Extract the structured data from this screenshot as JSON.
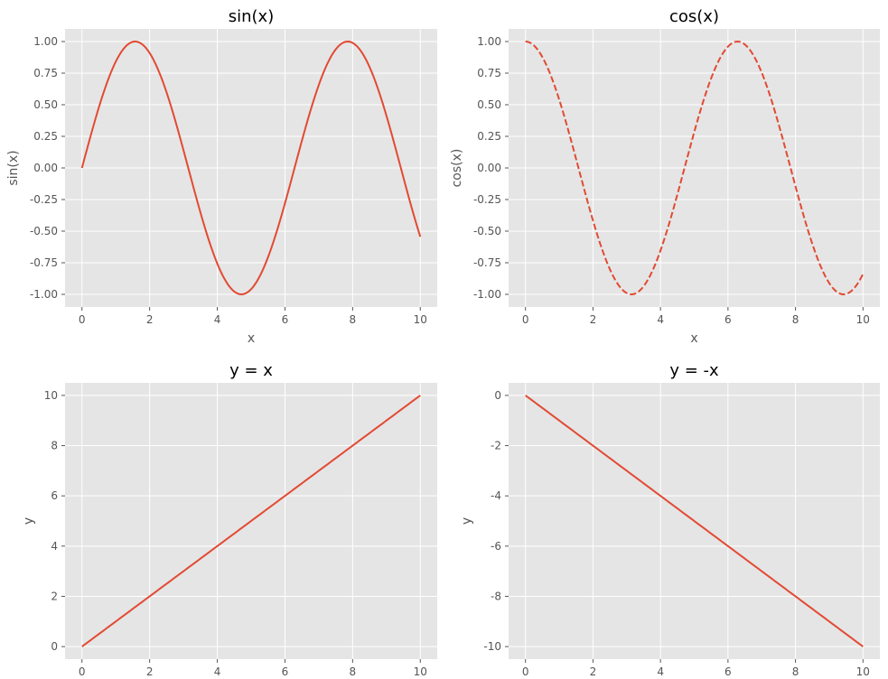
{
  "colors": {
    "line": "#E24A33",
    "panel_bg": "#E5E5E5",
    "grid": "#FFFFFF",
    "tick_mark": "#555555"
  },
  "chart_data": [
    {
      "type": "line",
      "title": "sin(x)",
      "xlabel": "x",
      "ylabel": "sin(x)",
      "function": "sin",
      "linestyle": "solid",
      "xlim": [
        -0.5,
        10.5
      ],
      "ylim": [
        -1.1,
        1.1
      ],
      "x_ticks": [
        0,
        2,
        4,
        6,
        8,
        10
      ],
      "x_tick_labels": [
        "0",
        "2",
        "4",
        "6",
        "8",
        "10"
      ],
      "y_ticks": [
        -1,
        -0.75,
        -0.5,
        -0.25,
        0,
        0.25,
        0.5,
        0.75,
        1
      ],
      "y_tick_labels": [
        "-1.00",
        "-0.75",
        "-0.50",
        "-0.25",
        "0.00",
        "0.25",
        "0.50",
        "0.75",
        "1.00"
      ],
      "grid": true
    },
    {
      "type": "line",
      "title": "cos(x)",
      "xlabel": "x",
      "ylabel": "cos(x)",
      "function": "cos",
      "linestyle": "dashed",
      "xlim": [
        -0.5,
        10.5
      ],
      "ylim": [
        -1.1,
        1.1
      ],
      "x_ticks": [
        0,
        2,
        4,
        6,
        8,
        10
      ],
      "x_tick_labels": [
        "0",
        "2",
        "4",
        "6",
        "8",
        "10"
      ],
      "y_ticks": [
        -1,
        -0.75,
        -0.5,
        -0.25,
        0,
        0.25,
        0.5,
        0.75,
        1
      ],
      "y_tick_labels": [
        "-1.00",
        "-0.75",
        "-0.50",
        "-0.25",
        "0.00",
        "0.25",
        "0.50",
        "0.75",
        "1.00"
      ],
      "grid": true
    },
    {
      "type": "line",
      "title": "y = x",
      "xlabel": "",
      "ylabel": "y",
      "function": "identity",
      "linestyle": "solid",
      "xlim": [
        -0.5,
        10.5
      ],
      "ylim": [
        -0.5,
        10.5
      ],
      "x_ticks": [
        0,
        2,
        4,
        6,
        8,
        10
      ],
      "x_tick_labels": [
        "0",
        "2",
        "4",
        "6",
        "8",
        "10"
      ],
      "y_ticks": [
        0,
        2,
        4,
        6,
        8,
        10
      ],
      "y_tick_labels": [
        "0",
        "2",
        "4",
        "6",
        "8",
        "10"
      ],
      "grid": true
    },
    {
      "type": "line",
      "title": "y = -x",
      "xlabel": "",
      "ylabel": "y",
      "function": "negate",
      "linestyle": "solid",
      "xlim": [
        -0.5,
        10.5
      ],
      "ylim": [
        -10.5,
        0.5
      ],
      "x_ticks": [
        0,
        2,
        4,
        6,
        8,
        10
      ],
      "x_tick_labels": [
        "0",
        "2",
        "4",
        "6",
        "8",
        "10"
      ],
      "y_ticks": [
        -10,
        -8,
        -6,
        -4,
        -2,
        0
      ],
      "y_tick_labels": [
        "-10",
        "-8",
        "-6",
        "-4",
        "-2",
        "0"
      ],
      "grid": true
    }
  ]
}
